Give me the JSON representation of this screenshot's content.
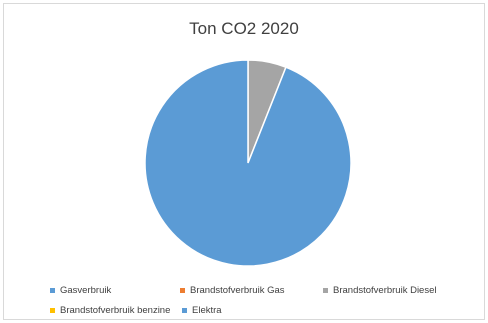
{
  "chart_data": {
    "type": "pie",
    "title": "Ton CO2 2020",
    "legend_position": "bottom",
    "slices": [
      {
        "label": "Gasverbruik",
        "value": 0,
        "color": "#5b9bd5"
      },
      {
        "label": "Brandstofverbruik Gas",
        "value": 0,
        "color": "#ed7d31"
      },
      {
        "label": "Brandstofverbruik Diesel",
        "value": 6,
        "color": "#a5a5a5"
      },
      {
        "label": "Brandstofverbruik benzine",
        "value": 0,
        "color": "#ffc000"
      },
      {
        "label": "Elektra",
        "value": 94,
        "color": "#5b9bd5"
      }
    ]
  }
}
